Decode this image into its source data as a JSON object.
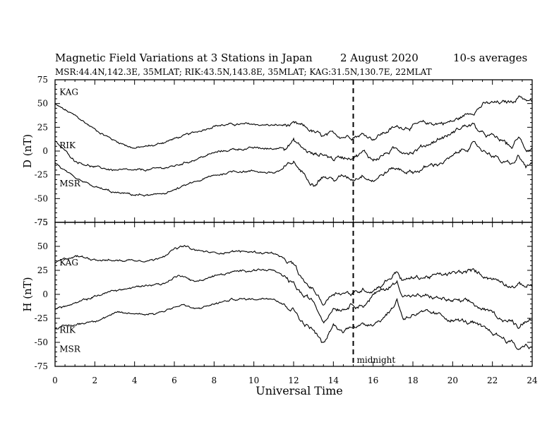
{
  "title": "Magnetic Field Variations at 3 Stations in Japan",
  "date_label": "2   August  2020",
  "averaging_label": "10-s averages",
  "subtitle": "MSR:44.4N,142.3E, 35MLAT;  RIK:43.5N,143.8E, 35MLAT;  KAG:31.5N,130.7E, 22MLAT",
  "xlabel": "Universal Time",
  "midnight_label": "midnight",
  "colors": {
    "line": "#000000",
    "background": "#ffffff"
  },
  "chart_data": [
    {
      "type": "line",
      "panel": "top",
      "ylabel": "D (nT)",
      "xlim": [
        0,
        24
      ],
      "ylim": [
        -75,
        75
      ],
      "xticks": [
        0,
        2,
        4,
        6,
        8,
        10,
        12,
        14,
        16,
        18,
        20,
        22,
        24
      ],
      "yticks": [
        -75,
        -50,
        -25,
        0,
        25,
        50,
        75
      ],
      "vline_x": 15,
      "series": [
        {
          "name": "KAG",
          "x": [
            0,
            1,
            2,
            3,
            4,
            5,
            6,
            7,
            8,
            9,
            10,
            11,
            12,
            12.5,
            13,
            13.5,
            14,
            14.5,
            15,
            15.5,
            16,
            17,
            18,
            19,
            20,
            20.5,
            21,
            21.5,
            22,
            22.5,
            23,
            23.3,
            23.7,
            24
          ],
          "values": [
            49,
            37,
            23,
            11,
            3,
            6,
            13,
            19,
            27,
            28,
            28,
            27,
            27,
            25,
            20,
            14,
            17,
            16,
            17,
            18,
            14,
            24,
            27,
            29,
            31,
            36,
            42,
            49,
            50,
            50,
            52,
            58,
            55,
            52
          ]
        },
        {
          "name": "RIK",
          "x": [
            0,
            1,
            2,
            3,
            4,
            5,
            6,
            7,
            8,
            9,
            10,
            11,
            11.5,
            12,
            12.5,
            13,
            13.5,
            14,
            14.5,
            15,
            15.5,
            16,
            17,
            18,
            19,
            20,
            20.5,
            21,
            21.5,
            22,
            22.5,
            23,
            23.3,
            23.7,
            24
          ],
          "values": [
            10,
            -10,
            -17,
            -20,
            -21,
            -19,
            -16,
            -9,
            -2,
            2,
            3,
            2,
            5,
            11,
            2,
            -4,
            -3,
            -8,
            -6,
            -5,
            -1,
            -9,
            1,
            0,
            10,
            19,
            26,
            28,
            17,
            15,
            10,
            4,
            14,
            2,
            4
          ]
        },
        {
          "name": "MSR",
          "x": [
            0,
            1,
            2,
            3,
            4,
            5,
            6,
            7,
            8,
            9,
            10,
            11,
            11.5,
            12,
            12.5,
            13,
            13.5,
            14,
            14.5,
            15,
            15.5,
            16,
            17,
            18,
            19,
            20,
            20.5,
            21,
            21.5,
            22,
            22.5,
            23,
            23.3,
            23.7,
            24
          ],
          "values": [
            -12,
            -30,
            -38,
            -44,
            -46,
            -47,
            -41,
            -33,
            -26,
            -21,
            -21,
            -23,
            -19,
            -12,
            -24,
            -33,
            -26,
            -30,
            -27,
            -29,
            -24,
            -30,
            -18,
            -22,
            -15,
            -7,
            1,
            7,
            1,
            -3,
            -12,
            -15,
            -6,
            -17,
            -14
          ]
        }
      ]
    },
    {
      "type": "line",
      "panel": "bottom",
      "ylabel": "H (nT)",
      "xlim": [
        0,
        24
      ],
      "ylim": [
        -75,
        75
      ],
      "xticks": [
        0,
        2,
        4,
        6,
        8,
        10,
        12,
        14,
        16,
        18,
        20,
        22,
        24
      ],
      "yticks": [
        -75,
        -50,
        -25,
        0,
        25,
        50,
        75
      ],
      "vline_x": 15,
      "series": [
        {
          "name": "KAG",
          "x": [
            0,
            1,
            2,
            3,
            4,
            5,
            6,
            6.5,
            7,
            8,
            9,
            10,
            11,
            11.5,
            12,
            12.5,
            13,
            13.5,
            14,
            14.5,
            15,
            15.5,
            16,
            16.5,
            17,
            17.2,
            17.5,
            18,
            19,
            20,
            21,
            22,
            23,
            24
          ],
          "values": [
            33,
            40,
            37,
            35,
            36,
            36,
            47,
            50,
            46,
            43,
            45,
            44,
            43,
            36,
            30,
            12,
            5,
            -10,
            2,
            3,
            0,
            5,
            5,
            12,
            20,
            25,
            14,
            17,
            19,
            21,
            24,
            17,
            10,
            9
          ]
        },
        {
          "name": "RIK",
          "x": [
            0,
            1,
            2,
            3,
            4,
            5,
            5.5,
            6,
            6.5,
            7,
            8,
            9,
            10,
            11,
            11.5,
            12,
            12.5,
            13,
            13.5,
            14,
            14.5,
            15,
            15.5,
            16,
            16.5,
            17,
            17.2,
            17.5,
            18,
            19,
            20,
            21,
            21.5,
            22,
            22.5,
            23,
            23.3,
            23.7,
            24
          ],
          "values": [
            -15,
            -10,
            -2,
            4,
            7,
            11,
            11,
            18,
            20,
            13,
            19,
            23,
            26,
            25,
            17,
            10,
            -2,
            -8,
            -27,
            -13,
            -14,
            -9,
            -11,
            -1,
            4,
            10,
            13,
            0,
            -2,
            -3,
            -7,
            -10,
            -16,
            -20,
            -25,
            -29,
            -33,
            -26,
            -25
          ]
        },
        {
          "name": "MSR",
          "x": [
            0,
            1,
            2,
            3,
            4,
            5,
            5.5,
            6,
            6.5,
            7,
            8,
            9,
            10,
            11,
            11.5,
            12,
            12.5,
            13,
            13.5,
            14,
            14.5,
            15,
            15.5,
            16,
            16.5,
            17,
            17.2,
            17.5,
            18,
            19,
            20,
            21,
            21.5,
            22,
            22.5,
            23,
            23.3,
            23.7,
            24
          ],
          "values": [
            -35,
            -32,
            -27,
            -20,
            -20,
            -20,
            -17,
            -13,
            -11,
            -16,
            -10,
            -5,
            -5,
            -3,
            -10,
            -15,
            -30,
            -37,
            -53,
            -33,
            -39,
            -31,
            -33,
            -29,
            -24,
            -14,
            -5,
            -25,
            -20,
            -21,
            -26,
            -30,
            -37,
            -40,
            -45,
            -50,
            -57,
            -52,
            -55
          ]
        }
      ]
    }
  ]
}
